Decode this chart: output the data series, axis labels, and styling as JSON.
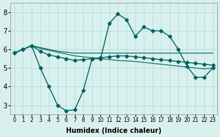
{
  "xlabel": "Humidex (Indice chaleur)",
  "ylabel": "",
  "x_ticks": [
    0,
    1,
    2,
    3,
    4,
    5,
    6,
    7,
    8,
    9,
    10,
    11,
    12,
    13,
    14,
    15,
    16,
    17,
    18,
    19,
    20,
    21,
    22,
    23
  ],
  "ylim": [
    2.5,
    8.5
  ],
  "xlim": [
    -0.5,
    23.5
  ],
  "yticks": [
    3,
    4,
    5,
    6,
    7,
    8
  ],
  "bg_color": "#d8f0ee",
  "grid_color": "#b0d8d4",
  "line_color": "#006060",
  "series": [
    [
      5.8,
      6.0,
      6.2,
      5.0,
      4.0,
      3.0,
      2.7,
      2.75,
      3.8,
      5.5,
      5.5,
      7.4,
      7.9,
      7.6,
      6.7,
      7.2,
      7.0,
      7.0,
      6.7,
      6.0,
      5.1,
      4.5,
      4.5,
      5.0
    ],
    [
      5.8,
      6.0,
      6.2,
      5.9,
      5.7,
      5.6,
      5.5,
      5.4,
      5.45,
      5.5,
      5.55,
      5.6,
      5.65,
      5.65,
      5.6,
      5.55,
      5.5,
      5.45,
      5.4,
      5.35,
      5.3,
      5.25,
      5.2,
      5.15
    ],
    [
      5.8,
      6.0,
      6.2,
      6.1,
      6.0,
      5.9,
      5.85,
      5.8,
      5.8,
      5.8,
      5.8,
      5.8,
      5.8,
      5.8,
      5.8,
      5.8,
      5.8,
      5.8,
      5.8,
      5.8,
      5.8,
      5.8,
      5.8,
      5.8
    ],
    [
      5.8,
      6.0,
      6.2,
      6.05,
      5.95,
      5.85,
      5.75,
      5.65,
      5.6,
      5.55,
      5.5,
      5.45,
      5.4,
      5.38,
      5.35,
      5.3,
      5.25,
      5.2,
      5.15,
      5.1,
      5.05,
      5.0,
      4.95,
      5.0
    ]
  ],
  "has_markers": [
    true,
    true,
    false,
    false
  ]
}
